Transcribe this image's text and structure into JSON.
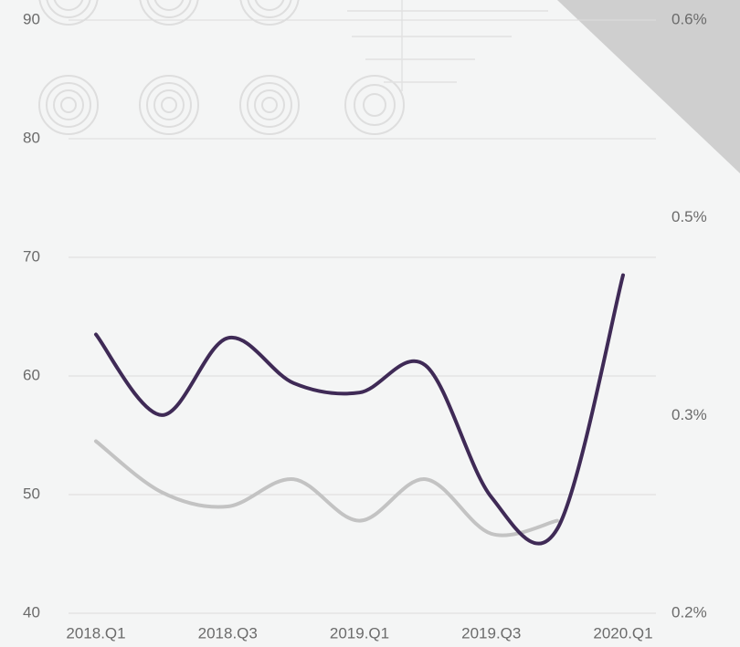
{
  "chart_data": {
    "type": "line",
    "categories": [
      "2018.Q1",
      null,
      "2018.Q3",
      null,
      "2019.Q1",
      null,
      "2019.Q3",
      null,
      "2020.Q1"
    ],
    "series": [
      {
        "color": "#3f2a56",
        "values": [
          63.5,
          56.7,
          63.2,
          59.4,
          58.6,
          60.9,
          49.8,
          47.1,
          68.5
        ]
      },
      {
        "color": "#c3c3c3",
        "values": [
          54.5,
          50.2,
          49,
          51.3,
          47.8,
          51.3,
          46.7,
          47.8,
          null
        ]
      }
    ],
    "ylim": [
      40,
      90
    ],
    "yticks": [
      40,
      50,
      60,
      70,
      80,
      90
    ],
    "y2lim": [
      0.2,
      0.6
    ],
    "y2ticks": [
      {
        "value": 0.2,
        "label": "0.2%"
      },
      {
        "value": 0.3333,
        "label": "0.3%"
      },
      {
        "value": 0.4667,
        "label": "0.5%"
      },
      {
        "value": 0.6,
        "label": "0.6%"
      }
    ],
    "grid": true
  }
}
